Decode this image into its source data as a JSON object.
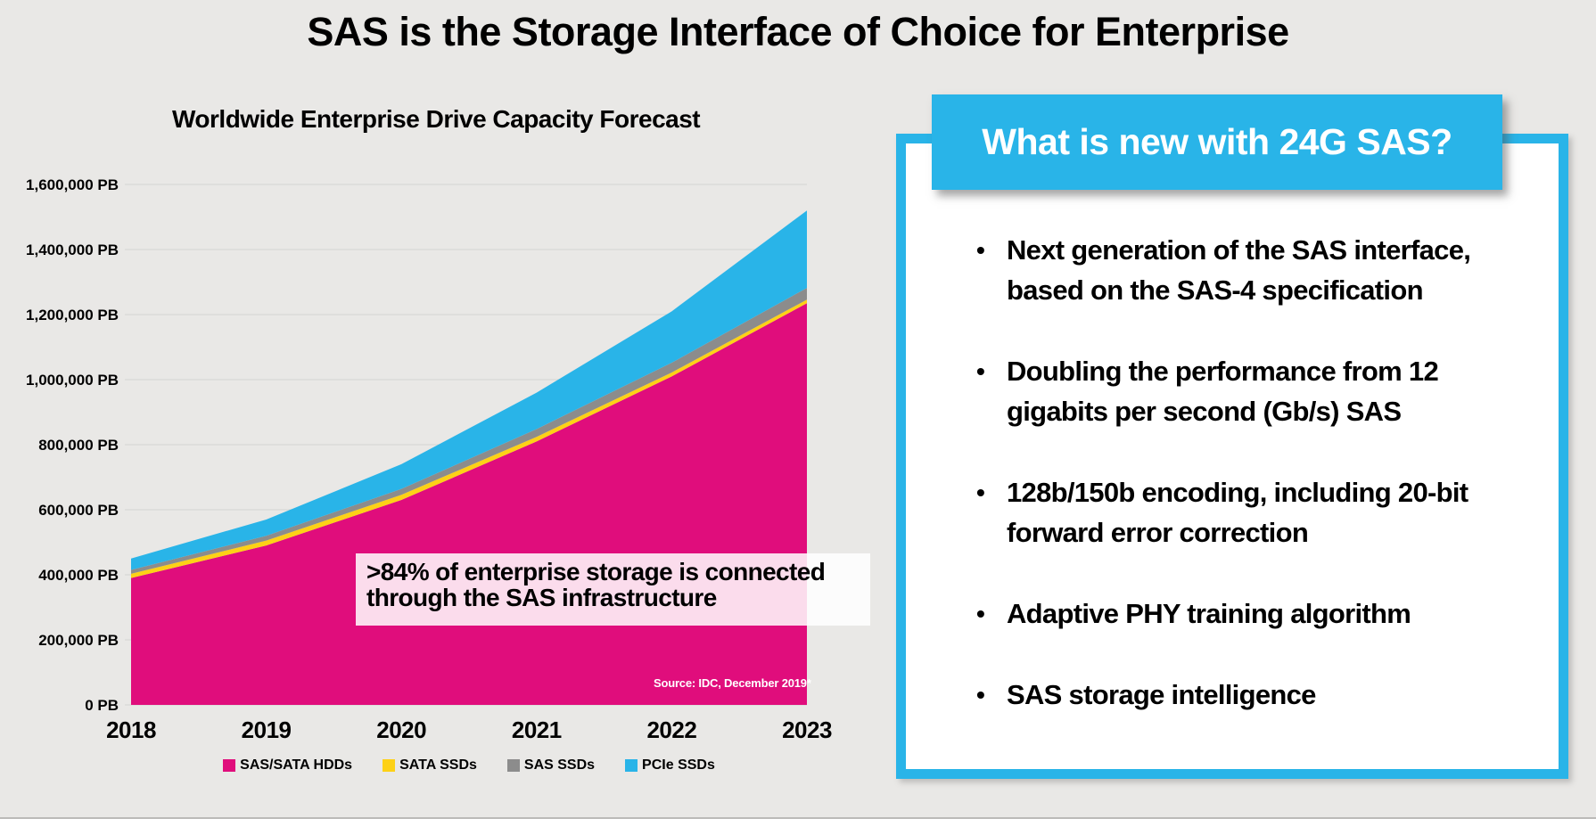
{
  "slide": {
    "title": "SAS is the Storage Interface of Choice for Enterprise"
  },
  "chart_data": {
    "type": "area",
    "stacked": true,
    "title": "Worldwide Enterprise Drive Capacity Forecast",
    "x": [
      2018,
      2019,
      2020,
      2021,
      2022,
      2023
    ],
    "series": [
      {
        "name": "SAS/SATA HDDs",
        "color": "#e00d7c",
        "values": [
          390000,
          490000,
          630000,
          810000,
          1010000,
          1235000
        ]
      },
      {
        "name": "SATA SSDs",
        "color": "#fdd116",
        "values": [
          13000,
          15000,
          16000,
          14000,
          12000,
          11000
        ]
      },
      {
        "name": "SAS SSDs",
        "color": "#8c8c8c",
        "values": [
          12000,
          15000,
          18000,
          24000,
          30000,
          36000
        ]
      },
      {
        "name": "PCIe SSDs",
        "color": "#29b4e8",
        "values": [
          35000,
          50000,
          76000,
          112000,
          158000,
          238000
        ]
      }
    ],
    "ylabel": "",
    "xlabel": "",
    "ylim": [
      0,
      1600000
    ],
    "ytick_step": 200000,
    "ytick_suffix": " PB",
    "grid": true,
    "legend_position": "bottom"
  },
  "callout": {
    "text": ">84% of enterprise storage is connected through the SAS infrastructure"
  },
  "source": {
    "text": "Source:  IDC, December 2019*"
  },
  "panel": {
    "header": "What is new with 24G SAS?",
    "bullets": [
      "Next generation of the SAS interface, based on the SAS-4 specification",
      "Doubling the performance from 12 gigabits per second (Gb/s) SAS",
      "128b/150b encoding, including 20-bit forward error correction",
      "Adaptive PHY training algorithm",
      "SAS storage intelligence"
    ]
  },
  "colors": {
    "slide_background": "#e9e8e6",
    "accent_cyan": "#29b4e8",
    "accent_magenta": "#e00d7c",
    "gridline": "#d8d8d5",
    "callout_background": "rgba(255,255,255,0.86)"
  }
}
